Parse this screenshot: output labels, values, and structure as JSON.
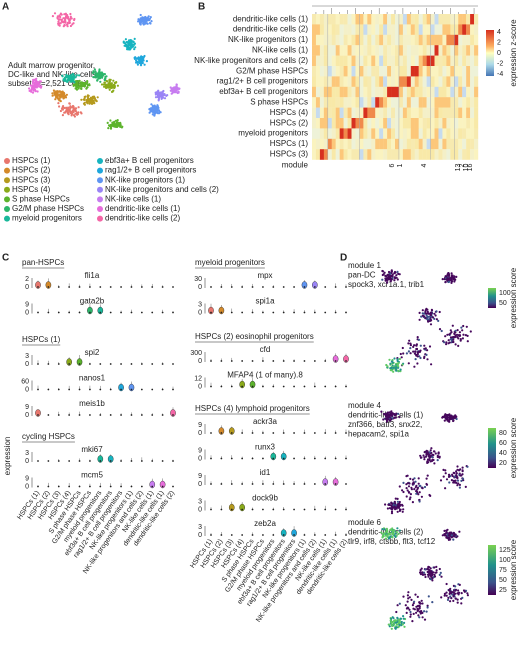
{
  "panel_a": {
    "label": "A",
    "annotation": [
      "Adult marrow progenitor,",
      "DC-like and NK-like cells",
      "subset (n=2,521 cells)"
    ],
    "legend": [
      {
        "name": "HSPCs (1)",
        "color": "#e8766d"
      },
      {
        "name": "HSPCs (2)",
        "color": "#d48a2a"
      },
      {
        "name": "HSPCs (3)",
        "color": "#b59a1e"
      },
      {
        "name": "HSPCs (4)",
        "color": "#8aaa1a"
      },
      {
        "name": "S phase HSPCs",
        "color": "#5cb32c"
      },
      {
        "name": "G2/M phase HSPCs",
        "color": "#2cb66a"
      },
      {
        "name": "myeloid progenitors",
        "color": "#19b89a"
      },
      {
        "name": "ebf3a+ B cell progenitors",
        "color": "#17b4c0"
      },
      {
        "name": "rag1/2+ B cell progenitors",
        "color": "#1fa7dc"
      },
      {
        "name": "NK-like progenitors (1)",
        "color": "#5f95f2"
      },
      {
        "name": "NK-like progenitors and cells (2)",
        "color": "#9a84f6"
      },
      {
        "name": "NK-like cells (1)",
        "color": "#c77cf0"
      },
      {
        "name": "dendritic-like cells (1)",
        "color": "#e76ddb"
      },
      {
        "name": "dendritic-like cells (2)",
        "color": "#f466a6"
      }
    ]
  },
  "panel_b": {
    "label": "B",
    "rows": [
      "dendritic-like cells (1)",
      "dendritic-like cells (2)",
      "NK-like progenitors (1)",
      "NK-like cells (1)",
      "NK-like progenitors and cells (2)",
      "G2/M phase HSPCs",
      "rag1/2+ B cell progenitors",
      "ebf3a+ B cell progenitors",
      "S phase HSPCs",
      "HSPCs (4)",
      "HSPCs (2)",
      "myeloid progenitors",
      "HSPCs (1)",
      "HSPCs (3)"
    ],
    "x_label": "module",
    "columns": [
      "6",
      "1",
      "4",
      "13",
      "2",
      "10",
      "16"
    ],
    "colorbar": {
      "title": "expression z-score",
      "ticks": [
        "4",
        "2",
        "0",
        "-2",
        "-4"
      ]
    }
  },
  "panel_c": {
    "label": "C",
    "y_label": "expression",
    "categories": [
      "HSPCs (1)",
      "HSPCs (2)",
      "HSPCs (3)",
      "HSPCs (4)",
      "S phase HSPCs",
      "G2/M phase HSPCs",
      "myeloid progenitors",
      "ebf3a+ B cell progenitors",
      "rag1/2+ B cell progenitors",
      "NK-like progenitors (1)",
      "NK-like progenitors and cells (2)",
      "NK-like cells (1)",
      "dendritic-like cells (1)",
      "dendritic-like cells (2)"
    ],
    "groups": [
      {
        "title": "pan-HSPCs",
        "genes": [
          {
            "name": "fli1a",
            "ticks": [
              "2",
              "0"
            ]
          },
          {
            "name": "gata2b",
            "ticks": [
              "9",
              "0"
            ]
          }
        ]
      },
      {
        "title": "HSPCs (1)",
        "genes": [
          {
            "name": "spi2",
            "ticks": [
              "3",
              "0"
            ]
          },
          {
            "name": "nanos1",
            "ticks": [
              "60",
              "0"
            ]
          },
          {
            "name": "meis1b",
            "ticks": [
              "9",
              "0"
            ]
          }
        ]
      },
      {
        "title": "cycling HSPCs",
        "genes": [
          {
            "name": "mki67",
            "ticks": [
              "3",
              "0"
            ]
          },
          {
            "name": "mcm5",
            "ticks": [
              "9",
              "0"
            ]
          }
        ]
      },
      {
        "title": "myeloid progenitors",
        "genes": [
          {
            "name": "mpx",
            "ticks": [
              "30",
              "0"
            ]
          },
          {
            "name": "spi1a",
            "ticks": [
              "3",
              "0"
            ]
          }
        ]
      },
      {
        "title": "HSPCs (2) eosinophil progenitors",
        "genes": [
          {
            "name": "cfd",
            "ticks": [
              "300",
              "0"
            ]
          },
          {
            "name": "MFAP4 (1 of many).8",
            "ticks": [
              "12",
              "0"
            ]
          }
        ]
      },
      {
        "title": "HSPCs (4) lymphoid progenitors",
        "genes": [
          {
            "name": "ackr3a",
            "ticks": [
              "9",
              "0"
            ]
          },
          {
            "name": "runx3",
            "ticks": [
              "9",
              "0"
            ]
          },
          {
            "name": "id1",
            "ticks": [
              "9",
              "0"
            ]
          },
          {
            "name": "dock9b",
            "ticks": [
              "3",
              "0"
            ]
          },
          {
            "name": "zeb2a",
            "ticks": [
              "3",
              "0"
            ]
          }
        ]
      }
    ]
  },
  "panel_d": {
    "label": "D",
    "modules": [
      {
        "lines": [
          "module 1",
          "pan-DC",
          "spock3, xcr1a.1, trib1"
        ],
        "colorbar_title": "expression score",
        "ticks": [
          "100",
          "50"
        ]
      },
      {
        "lines": [
          "module 4",
          "dendritic-like cells (1)",
          "znf366, batf3, snx22,",
          "hepacam2, spi1a"
        ],
        "colorbar_title": "expression score",
        "ticks": [
          "80",
          "60",
          "40",
          "20"
        ]
      },
      {
        "lines": [
          "module 6",
          "dendritic-like cells (2)",
          "tlr9, irf8, ctsbb, flt3, tcf12"
        ],
        "colorbar_title": "expression score",
        "ticks": [
          "125",
          "100",
          "75",
          "50",
          "25"
        ]
      }
    ]
  }
}
